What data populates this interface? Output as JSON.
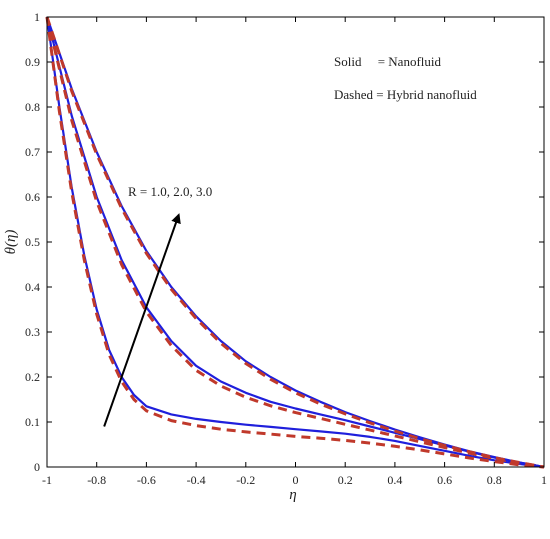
{
  "chart_data": {
    "type": "line",
    "title": "",
    "xlabel": "η",
    "ylabel": "θ(η)",
    "xlim": [
      -1,
      1
    ],
    "ylim": [
      0,
      1
    ],
    "x_ticks": [
      "-1",
      "-0.8",
      "-0.6",
      "-0.4",
      "-0.2",
      "0",
      "0.2",
      "0.4",
      "0.6",
      "0.8",
      "1"
    ],
    "y_ticks": [
      "0",
      "0.1",
      "0.2",
      "0.3",
      "0.4",
      "0.5",
      "0.6",
      "0.7",
      "0.8",
      "0.9",
      "1"
    ],
    "grid": false,
    "legend": {
      "placement": "top-right",
      "entries": [
        "Solid     = Nanofluid",
        "Dashed = Hybrid nanofluid"
      ]
    },
    "annotation": {
      "text": "R = 1.0, 2.0, 3.0",
      "arrow_from": [
        -0.77,
        0.09
      ],
      "arrow_to": [
        -0.47,
        0.56
      ]
    },
    "series": [
      {
        "style": "solid",
        "color": "#1f1fdc",
        "group": "R = 1.0",
        "x": [
          -1,
          -0.95,
          -0.9,
          -0.85,
          -0.8,
          -0.75,
          -0.7,
          -0.65,
          -0.6,
          -0.5,
          -0.4,
          -0.3,
          -0.2,
          -0.1,
          0,
          0.1,
          0.2,
          0.3,
          0.4,
          0.5,
          0.6,
          0.7,
          0.8,
          0.9,
          1
        ],
        "y": [
          1,
          0.8,
          0.62,
          0.47,
          0.35,
          0.26,
          0.2,
          0.16,
          0.135,
          0.117,
          0.107,
          0.1,
          0.094,
          0.089,
          0.084,
          0.079,
          0.074,
          0.067,
          0.058,
          0.047,
          0.036,
          0.025,
          0.015,
          0.007,
          0
        ]
      },
      {
        "style": "dashed",
        "color": "#c0392b",
        "group": "R = 1.0",
        "x": [
          -1,
          -0.95,
          -0.9,
          -0.85,
          -0.8,
          -0.75,
          -0.7,
          -0.65,
          -0.6,
          -0.5,
          -0.4,
          -0.3,
          -0.2,
          -0.1,
          0,
          0.1,
          0.2,
          0.3,
          0.4,
          0.5,
          0.6,
          0.7,
          0.8,
          0.9,
          1
        ],
        "y": [
          1,
          0.79,
          0.61,
          0.46,
          0.34,
          0.25,
          0.19,
          0.15,
          0.125,
          0.103,
          0.092,
          0.084,
          0.078,
          0.073,
          0.068,
          0.064,
          0.059,
          0.053,
          0.046,
          0.038,
          0.029,
          0.02,
          0.012,
          0.005,
          0
        ]
      },
      {
        "style": "solid",
        "color": "#1f1fdc",
        "group": "R = 2.0",
        "x": [
          -1,
          -0.9,
          -0.8,
          -0.7,
          -0.6,
          -0.5,
          -0.4,
          -0.3,
          -0.2,
          -0.1,
          0,
          0.1,
          0.2,
          0.3,
          0.4,
          0.5,
          0.6,
          0.7,
          0.8,
          0.9,
          1
        ],
        "y": [
          1,
          0.78,
          0.6,
          0.46,
          0.355,
          0.28,
          0.225,
          0.19,
          0.165,
          0.145,
          0.13,
          0.117,
          0.104,
          0.09,
          0.076,
          0.062,
          0.048,
          0.034,
          0.021,
          0.01,
          0
        ]
      },
      {
        "style": "dashed",
        "color": "#c0392b",
        "group": "R = 2.0",
        "x": [
          -1,
          -0.9,
          -0.8,
          -0.7,
          -0.6,
          -0.5,
          -0.4,
          -0.3,
          -0.2,
          -0.1,
          0,
          0.1,
          0.2,
          0.3,
          0.4,
          0.5,
          0.6,
          0.7,
          0.8,
          0.9,
          1
        ],
        "y": [
          1,
          0.77,
          0.59,
          0.45,
          0.345,
          0.27,
          0.215,
          0.18,
          0.155,
          0.136,
          0.121,
          0.108,
          0.095,
          0.082,
          0.069,
          0.056,
          0.043,
          0.031,
          0.019,
          0.009,
          0
        ]
      },
      {
        "style": "solid",
        "color": "#1f1fdc",
        "group": "R = 3.0",
        "x": [
          -1,
          -0.9,
          -0.8,
          -0.7,
          -0.6,
          -0.5,
          -0.4,
          -0.3,
          -0.2,
          -0.1,
          0,
          0.1,
          0.2,
          0.3,
          0.4,
          0.5,
          0.6,
          0.7,
          0.8,
          0.9,
          1
        ],
        "y": [
          1,
          0.84,
          0.7,
          0.58,
          0.48,
          0.4,
          0.335,
          0.28,
          0.235,
          0.2,
          0.17,
          0.145,
          0.122,
          0.102,
          0.083,
          0.066,
          0.05,
          0.035,
          0.022,
          0.01,
          0
        ]
      },
      {
        "style": "dashed",
        "color": "#c0392b",
        "group": "R = 3.0",
        "x": [
          -1,
          -0.9,
          -0.8,
          -0.7,
          -0.6,
          -0.5,
          -0.4,
          -0.3,
          -0.2,
          -0.1,
          0,
          0.1,
          0.2,
          0.3,
          0.4,
          0.5,
          0.6,
          0.7,
          0.8,
          0.9,
          1
        ],
        "y": [
          1,
          0.835,
          0.695,
          0.575,
          0.475,
          0.395,
          0.33,
          0.275,
          0.23,
          0.195,
          0.165,
          0.14,
          0.118,
          0.098,
          0.08,
          0.063,
          0.048,
          0.034,
          0.021,
          0.01,
          0
        ]
      }
    ]
  }
}
